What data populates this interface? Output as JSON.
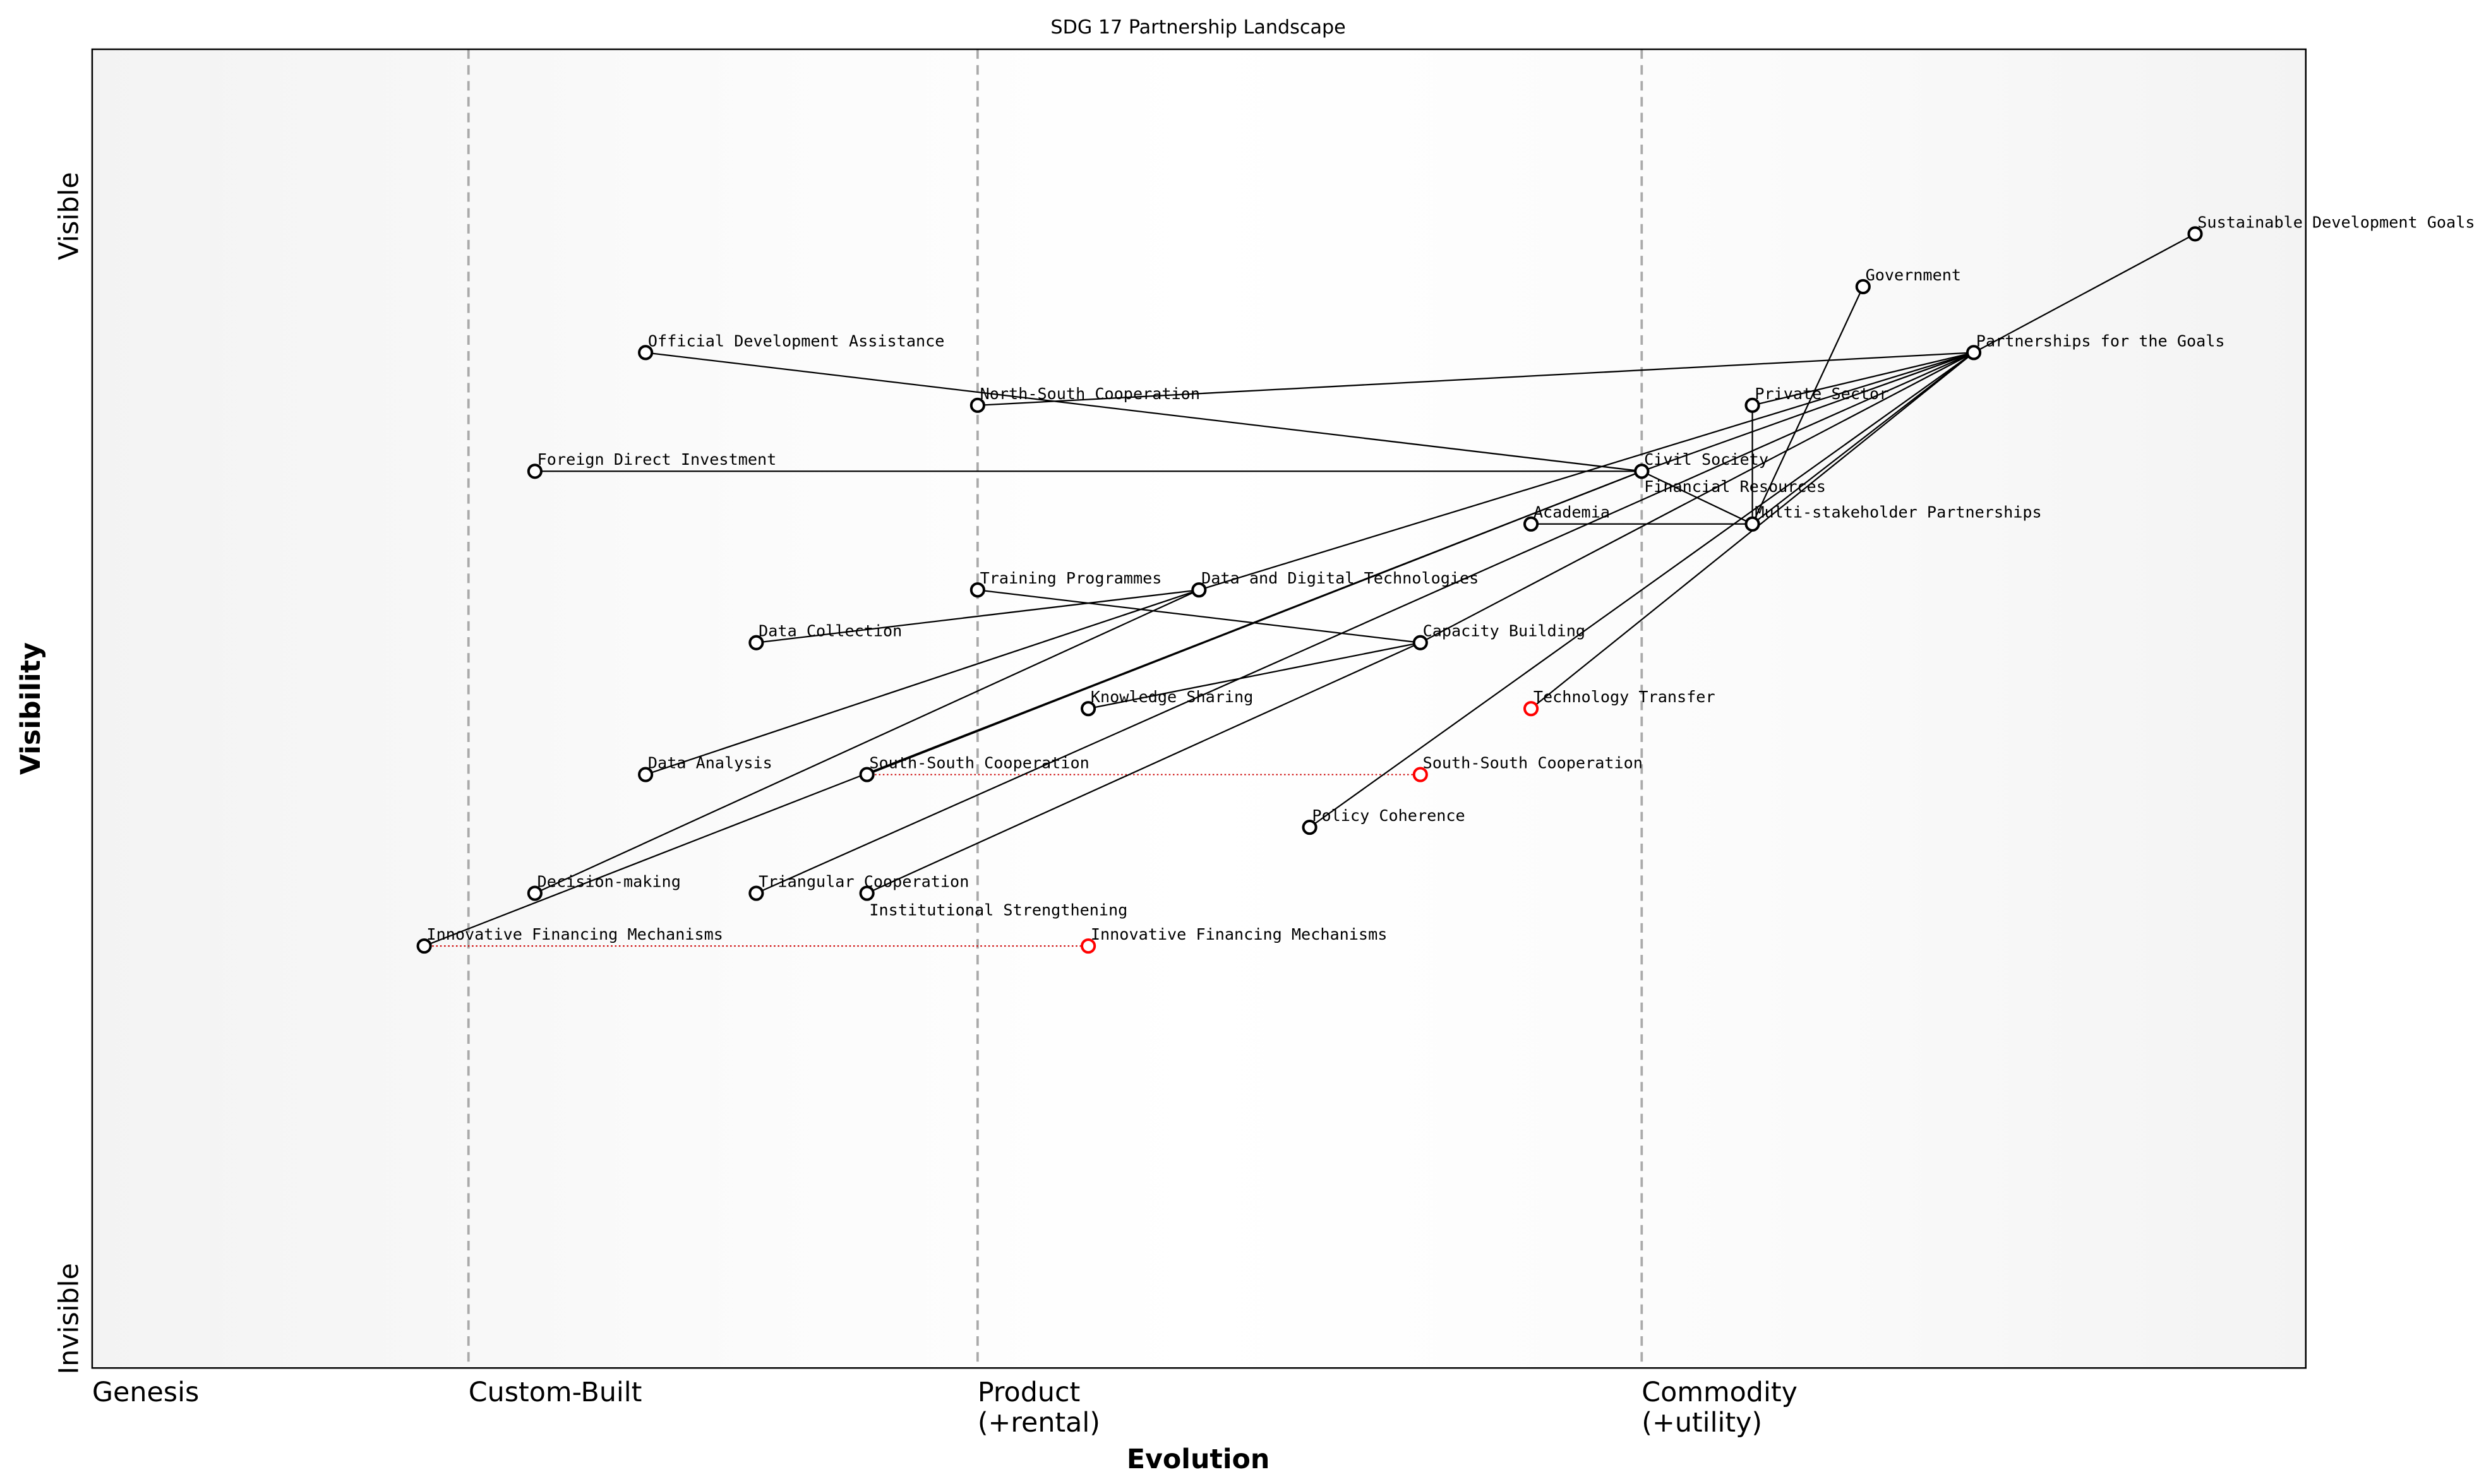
{
  "title": "SDG 17 Partnership Landscape",
  "x_axis": {
    "title": "Evolution",
    "stages": [
      {
        "label": "Genesis",
        "sub": "",
        "at": 0.0
      },
      {
        "label": "Custom-Built",
        "sub": "",
        "at": 0.17
      },
      {
        "label": "Product",
        "sub": "(+rental)",
        "at": 0.4
      },
      {
        "label": "Commodity",
        "sub": "(+utility)",
        "at": 0.7
      }
    ]
  },
  "y_axis": {
    "title": "Visibility",
    "top_label": "Visible",
    "bottom_label": "Invisible"
  },
  "colors": {
    "node": "#000000",
    "evolved_node": "#ff0000",
    "evolution_line": "#cc0000",
    "stage_line": "#aaaaaa"
  },
  "chart_data": {
    "type": "wardley-map",
    "xlim": [
      0,
      1
    ],
    "ylim": [
      0,
      1
    ],
    "components": [
      {
        "name": "Sustainable Development Goals",
        "evolution": 0.95,
        "visibility": 0.86
      },
      {
        "name": "Government",
        "evolution": 0.8,
        "visibility": 0.82
      },
      {
        "name": "Partnerships for the Goals",
        "evolution": 0.85,
        "visibility": 0.77
      },
      {
        "name": "Official Development Assistance",
        "evolution": 0.25,
        "visibility": 0.77
      },
      {
        "name": "North-South Cooperation",
        "evolution": 0.4,
        "visibility": 0.73
      },
      {
        "name": "Private Sector",
        "evolution": 0.75,
        "visibility": 0.73
      },
      {
        "name": "Foreign Direct Investment",
        "evolution": 0.2,
        "visibility": 0.68
      },
      {
        "name": "Civil Society",
        "evolution": 0.7,
        "visibility": 0.68
      },
      {
        "name": "Financial Resources",
        "evolution": 0.7,
        "visibility": 0.68
      },
      {
        "name": "Academia",
        "evolution": 0.65,
        "visibility": 0.64
      },
      {
        "name": "Multi-stakeholder Partnerships",
        "evolution": 0.75,
        "visibility": 0.64
      },
      {
        "name": "Training Programmes",
        "evolution": 0.4,
        "visibility": 0.59
      },
      {
        "name": "Data and Digital Technologies",
        "evolution": 0.5,
        "visibility": 0.59
      },
      {
        "name": "Data Collection",
        "evolution": 0.3,
        "visibility": 0.55
      },
      {
        "name": "Capacity Building",
        "evolution": 0.6,
        "visibility": 0.55
      },
      {
        "name": "Knowledge Sharing",
        "evolution": 0.45,
        "visibility": 0.5
      },
      {
        "name": "Technology Transfer",
        "evolution": 0.65,
        "visibility": 0.5,
        "evolved": true
      },
      {
        "name": "Data Analysis",
        "evolution": 0.25,
        "visibility": 0.45
      },
      {
        "name": "South-South Cooperation",
        "evolution": 0.35,
        "visibility": 0.45
      },
      {
        "name": "Policy Coherence",
        "evolution": 0.55,
        "visibility": 0.41
      },
      {
        "name": "Decision-making",
        "evolution": 0.2,
        "visibility": 0.36
      },
      {
        "name": "Triangular Cooperation",
        "evolution": 0.3,
        "visibility": 0.36
      },
      {
        "name": "Institutional Strengthening",
        "evolution": 0.35,
        "visibility": 0.36
      },
      {
        "name": "Innovative Financing Mechanisms",
        "evolution": 0.15,
        "visibility": 0.32
      }
    ],
    "evolutions": [
      {
        "name": "South-South Cooperation",
        "from": 0.35,
        "to": 0.6,
        "visibility": 0.45
      },
      {
        "name": "Innovative Financing Mechanisms",
        "from": 0.15,
        "to": 0.45,
        "visibility": 0.32
      }
    ],
    "links": [
      [
        "Sustainable Development Goals",
        "Partnerships for the Goals"
      ],
      [
        "Partnerships for the Goals",
        "North-South Cooperation"
      ],
      [
        "Partnerships for the Goals",
        "Private Sector"
      ],
      [
        "Partnerships for the Goals",
        "Civil Society"
      ],
      [
        "Partnerships for the Goals",
        "Multi-stakeholder Partnerships"
      ],
      [
        "Partnerships for the Goals",
        "Data and Digital Technologies"
      ],
      [
        "Partnerships for the Goals",
        "Capacity Building"
      ],
      [
        "Partnerships for the Goals",
        "Technology Transfer"
      ],
      [
        "Partnerships for the Goals",
        "Policy Coherence"
      ],
      [
        "Partnerships for the Goals",
        "Triangular Cooperation"
      ],
      [
        "Government",
        "Multi-stakeholder Partnerships"
      ],
      [
        "Private Sector",
        "Multi-stakeholder Partnerships"
      ],
      [
        "Academia",
        "Multi-stakeholder Partnerships"
      ],
      [
        "Civil Society",
        "Multi-stakeholder Partnerships"
      ],
      [
        "Official Development Assistance",
        "Financial Resources"
      ],
      [
        "Foreign Direct Investment",
        "Financial Resources"
      ],
      [
        "South-South Cooperation",
        "Financial Resources"
      ],
      [
        "Innovative Financing Mechanisms",
        "Financial Resources"
      ],
      [
        "Data Collection",
        "Data and Digital Technologies"
      ],
      [
        "Data Analysis",
        "Data and Digital Technologies"
      ],
      [
        "Decision-making",
        "Data and Digital Technologies"
      ],
      [
        "Training Programmes",
        "Capacity Building"
      ],
      [
        "Knowledge Sharing",
        "Capacity Building"
      ],
      [
        "Institutional Strengthening",
        "Capacity Building"
      ]
    ]
  }
}
